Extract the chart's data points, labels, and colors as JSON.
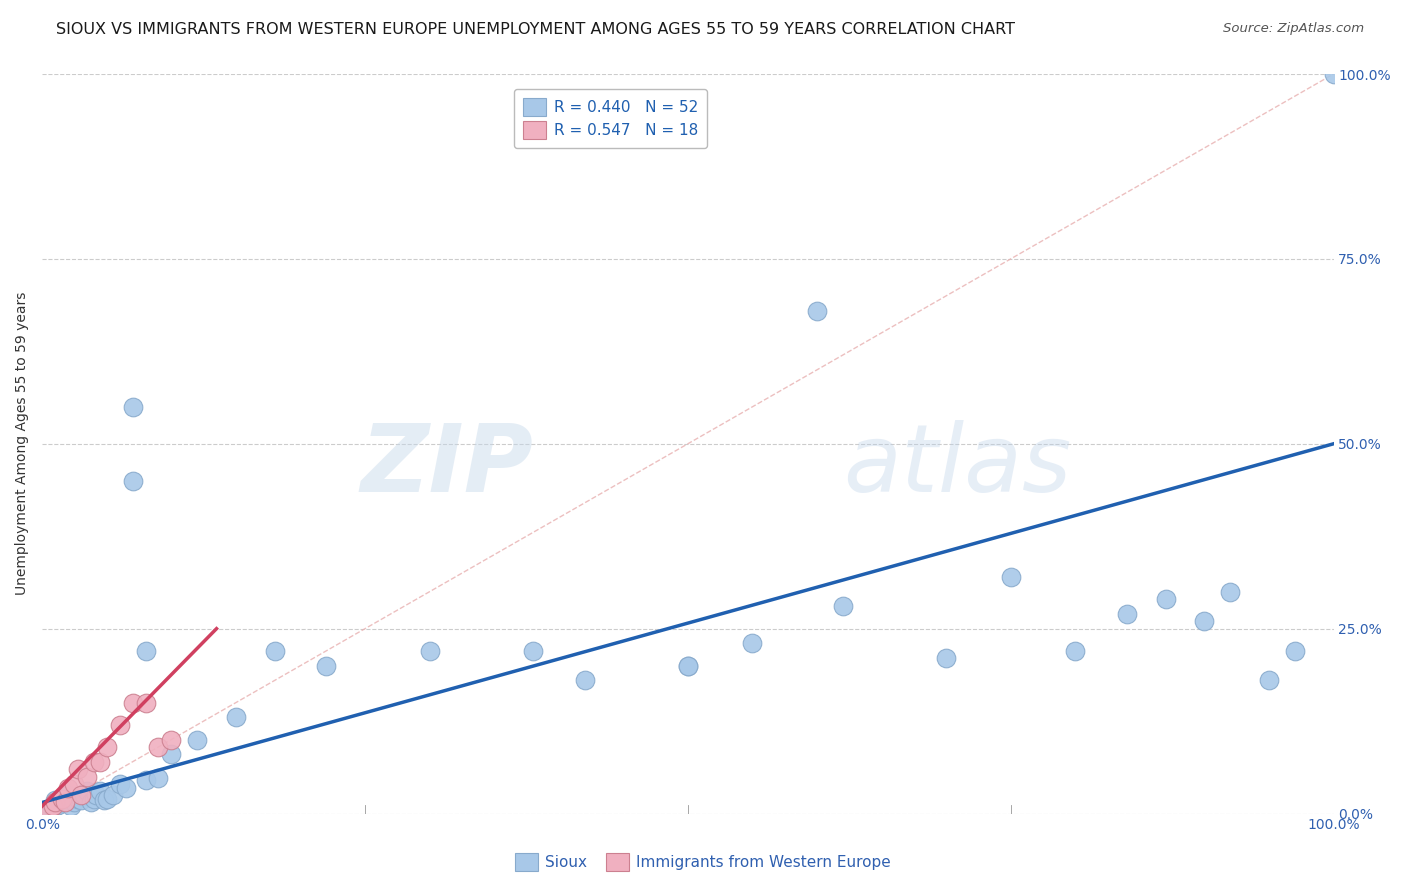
{
  "title": "SIOUX VS IMMIGRANTS FROM WESTERN EUROPE UNEMPLOYMENT AMONG AGES 55 TO 59 YEARS CORRELATION CHART",
  "source": "Source: ZipAtlas.com",
  "ylabel": "Unemployment Among Ages 55 to 59 years",
  "xlim": [
    0,
    1
  ],
  "ylim": [
    0,
    1
  ],
  "ytick_positions": [
    0.0,
    0.25,
    0.5,
    0.75,
    1.0
  ],
  "ytick_labels": [
    "0.0%",
    "25.0%",
    "50.0%",
    "75.0%",
    "100.0%"
  ],
  "xtick_positions": [
    0.0,
    1.0
  ],
  "xtick_labels": [
    "0.0%",
    "100.0%"
  ],
  "grid_color": "#cccccc",
  "background_color": "#ffffff",
  "sioux_color": "#a8c8e8",
  "sioux_edge_color": "#88aacc",
  "immigrants_color": "#f0b0c0",
  "immigrants_edge_color": "#cc8090",
  "sioux_line_color": "#2060b0",
  "immigrants_line_color": "#d04060",
  "diagonal_color": "#e8b0b0",
  "tick_color": "#3060b0",
  "title_color": "#1a1a1a",
  "source_color": "#555555",
  "ylabel_color": "#333333",
  "watermark_color": "#ccddf0",
  "legend_label_color": "#2060b0",
  "sioux_scatter_x": [
    0.005,
    0.008,
    0.01,
    0.01,
    0.012,
    0.015,
    0.018,
    0.02,
    0.022,
    0.025,
    0.028,
    0.03,
    0.03,
    0.032,
    0.035,
    0.038,
    0.04,
    0.042,
    0.045,
    0.048,
    0.05,
    0.055,
    0.06,
    0.065,
    0.07,
    0.08,
    0.09,
    0.1,
    0.12,
    0.15,
    0.18,
    0.22,
    0.3,
    0.38,
    0.42,
    0.5,
    0.55,
    0.62,
    0.7,
    0.75,
    0.8,
    0.84,
    0.87,
    0.9,
    0.92,
    0.95,
    0.97,
    1.0,
    0.07,
    0.08,
    0.5,
    0.6
  ],
  "sioux_scatter_y": [
    0.005,
    0.008,
    0.01,
    0.018,
    0.012,
    0.015,
    0.02,
    0.025,
    0.01,
    0.015,
    0.02,
    0.022,
    0.018,
    0.025,
    0.03,
    0.015,
    0.02,
    0.025,
    0.03,
    0.018,
    0.02,
    0.025,
    0.04,
    0.035,
    0.55,
    0.045,
    0.048,
    0.08,
    0.1,
    0.13,
    0.22,
    0.2,
    0.22,
    0.22,
    0.18,
    0.2,
    0.23,
    0.28,
    0.21,
    0.32,
    0.22,
    0.27,
    0.29,
    0.26,
    0.3,
    0.18,
    0.22,
    1.0,
    0.45,
    0.22,
    0.2,
    0.68
  ],
  "immigrants_scatter_x": [
    0.005,
    0.008,
    0.01,
    0.015,
    0.018,
    0.02,
    0.025,
    0.028,
    0.03,
    0.035,
    0.04,
    0.045,
    0.05,
    0.06,
    0.07,
    0.08,
    0.09,
    0.1
  ],
  "immigrants_scatter_y": [
    0.005,
    0.01,
    0.015,
    0.02,
    0.015,
    0.035,
    0.04,
    0.06,
    0.025,
    0.05,
    0.07,
    0.07,
    0.09,
    0.12,
    0.15,
    0.15,
    0.09,
    0.1
  ],
  "sioux_line_x": [
    0.0,
    1.0
  ],
  "sioux_line_y": [
    0.015,
    0.5
  ],
  "immigrants_line_x": [
    0.0,
    0.135
  ],
  "immigrants_line_y": [
    0.01,
    0.25
  ],
  "legend_sioux_label": "R = 0.440   N = 52",
  "legend_immigrants_label": "R = 0.547   N = 18",
  "bottom_sioux_label": "Sioux",
  "bottom_immigrants_label": "Immigrants from Western Europe",
  "title_fontsize": 11.5,
  "source_fontsize": 9.5,
  "ylabel_fontsize": 10,
  "tick_fontsize": 10,
  "legend_fontsize": 11
}
